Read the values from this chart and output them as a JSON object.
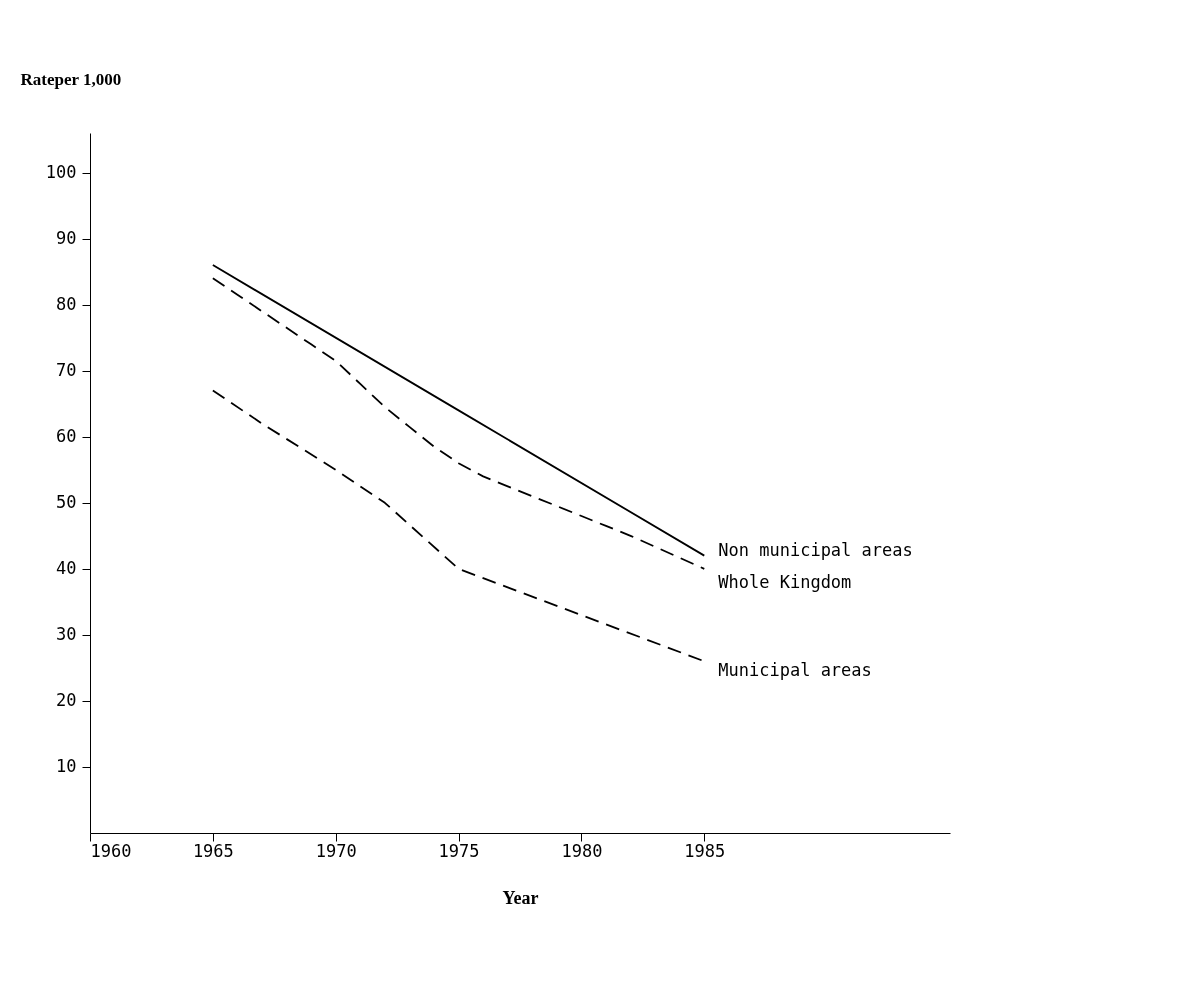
{
  "chart_data": {
    "type": "line",
    "ylabel": "Rateper 1,000",
    "xlabel": "Year",
    "xlim": [
      1960,
      1995
    ],
    "xticks": [
      1960,
      1965,
      1970,
      1975,
      1980,
      1985
    ],
    "ylim": [
      0,
      106
    ],
    "yticks": [
      10,
      20,
      30,
      40,
      50,
      60,
      70,
      80,
      90,
      100
    ],
    "grid": false,
    "legend": false,
    "series": [
      {
        "name": "Non municipal areas",
        "color": "#000000",
        "line_style": "solid",
        "x": [
          1965,
          1975,
          1985
        ],
        "values": [
          86,
          64,
          42
        ]
      },
      {
        "name": "Whole Kingdom",
        "color": "#000000",
        "line_style": "dashed",
        "x": [
          1965,
          1966,
          1967,
          1968,
          1969,
          1970,
          1971,
          1972,
          1973,
          1974,
          1975,
          1976,
          1977,
          1978,
          1979,
          1980,
          1981,
          1982,
          1985
        ],
        "values": [
          84,
          81.5,
          79,
          76.5,
          74,
          71.5,
          68,
          64.5,
          61.5,
          58.5,
          56,
          54,
          52.5,
          51,
          49.5,
          48,
          46.5,
          45,
          40
        ]
      },
      {
        "name": "Municipal areas",
        "color": "#000000",
        "line_style": "dashed",
        "x": [
          1965,
          1967,
          1970,
          1972,
          1975,
          1980,
          1985
        ],
        "values": [
          67,
          62,
          55,
          50,
          40,
          33,
          26
        ]
      }
    ]
  }
}
